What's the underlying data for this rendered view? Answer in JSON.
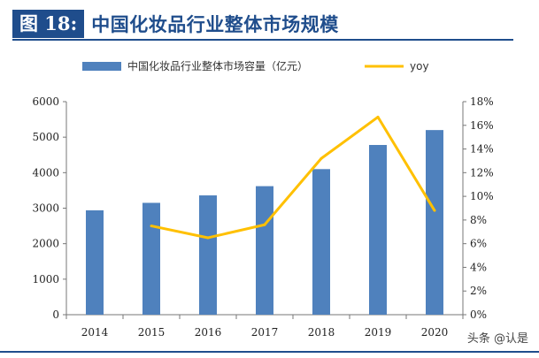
{
  "header": {
    "figure_label": "图 18:",
    "title": "中国化妆品行业整体市场规模"
  },
  "watermark": "头条 @认是",
  "chart_data": {
    "type": "bar",
    "title": "中国化妆品行业整体市场规模",
    "categories": [
      "2014",
      "2015",
      "2016",
      "2017",
      "2018",
      "2019",
      "2020"
    ],
    "series": [
      {
        "name": "中国化妆品行业整体市场容量（亿元）",
        "type": "bar",
        "axis": "left",
        "color": "#4f81bd",
        "values": [
          2940,
          3150,
          3360,
          3620,
          4100,
          4780,
          5200
        ]
      },
      {
        "name": "yoy",
        "type": "line",
        "axis": "right",
        "color": "#ffc000",
        "values": [
          null,
          7.5,
          6.5,
          7.6,
          13.2,
          16.7,
          8.8
        ]
      }
    ],
    "y_left": {
      "min": 0,
      "max": 6000,
      "step": 1000,
      "ticks": [
        "0",
        "1000",
        "2000",
        "3000",
        "4000",
        "5000",
        "6000"
      ]
    },
    "y_right": {
      "min": 0,
      "max": 18,
      "step": 2,
      "ticks": [
        "0%",
        "2%",
        "4%",
        "6%",
        "8%",
        "10%",
        "12%",
        "14%",
        "16%",
        "18%"
      ]
    },
    "legend_position": "top",
    "grid": false
  }
}
